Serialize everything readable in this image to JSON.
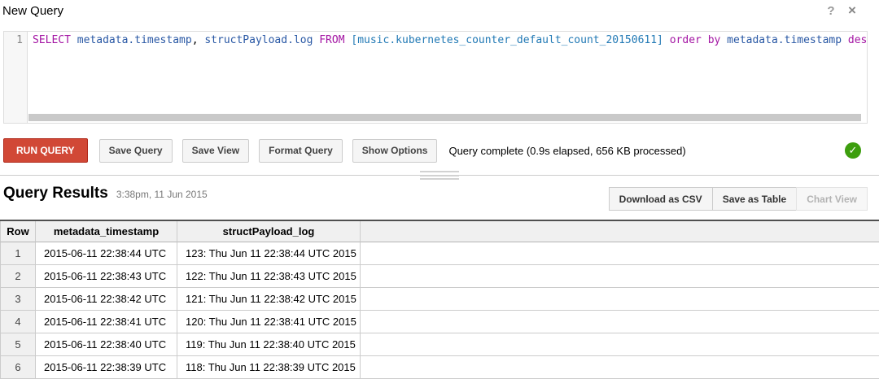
{
  "header": {
    "title": "New Query",
    "help_icon": "?",
    "close_icon": "×"
  },
  "editor": {
    "line_number": "1",
    "tokens": [
      {
        "text": "SELECT",
        "type": "keyword"
      },
      {
        "text": " ",
        "type": "plain"
      },
      {
        "text": "metadata.timestamp",
        "type": "field"
      },
      {
        "text": ", ",
        "type": "plain"
      },
      {
        "text": "structPayload.log",
        "type": "field"
      },
      {
        "text": " ",
        "type": "plain"
      },
      {
        "text": "FROM",
        "type": "keyword"
      },
      {
        "text": " ",
        "type": "plain"
      },
      {
        "text": "[music.kubernetes_counter_default_count_20150611]",
        "type": "table"
      },
      {
        "text": " ",
        "type": "plain"
      },
      {
        "text": "order",
        "type": "keyword"
      },
      {
        "text": " ",
        "type": "plain"
      },
      {
        "text": "by",
        "type": "keyword"
      },
      {
        "text": " ",
        "type": "plain"
      },
      {
        "text": "metadata.timestamp",
        "type": "field"
      },
      {
        "text": " ",
        "type": "plain"
      },
      {
        "text": "desc",
        "type": "keyword"
      }
    ],
    "colors": {
      "keyword": "#a314a3",
      "field": "#2857a4",
      "table": "#2179b5",
      "plain": "#000000"
    }
  },
  "toolbar": {
    "run_label": "RUN QUERY",
    "buttons": [
      "Save Query",
      "Save View",
      "Format Query",
      "Show Options"
    ],
    "status": "Query complete (0.9s elapsed, 656 KB processed)",
    "success_check": "✓"
  },
  "results": {
    "title": "Query Results",
    "timestamp": "3:38pm, 11 Jun 2015",
    "actions": [
      {
        "label": "Download as CSV",
        "enabled": true
      },
      {
        "label": "Save as Table",
        "enabled": true
      },
      {
        "label": "Chart View",
        "enabled": false
      }
    ],
    "table": {
      "columns": [
        "Row",
        "metadata_timestamp",
        "structPayload_log"
      ],
      "rows": [
        [
          "1",
          "2015-06-11 22:38:44 UTC",
          "123: Thu Jun 11 22:38:44 UTC 2015"
        ],
        [
          "2",
          "2015-06-11 22:38:43 UTC",
          "122: Thu Jun 11 22:38:43 UTC 2015"
        ],
        [
          "3",
          "2015-06-11 22:38:42 UTC",
          "121: Thu Jun 11 22:38:42 UTC 2015"
        ],
        [
          "4",
          "2015-06-11 22:38:41 UTC",
          "120: Thu Jun 11 22:38:41 UTC 2015"
        ],
        [
          "5",
          "2015-06-11 22:38:40 UTC",
          "119: Thu Jun 11 22:38:40 UTC 2015"
        ],
        [
          "6",
          "2015-06-11 22:38:39 UTC",
          "118: Thu Jun 11 22:38:39 UTC 2015"
        ]
      ]
    }
  },
  "colors": {
    "accent_red": "#d14836",
    "success_green": "#3d9e0e",
    "border_gray": "#cccccc"
  }
}
